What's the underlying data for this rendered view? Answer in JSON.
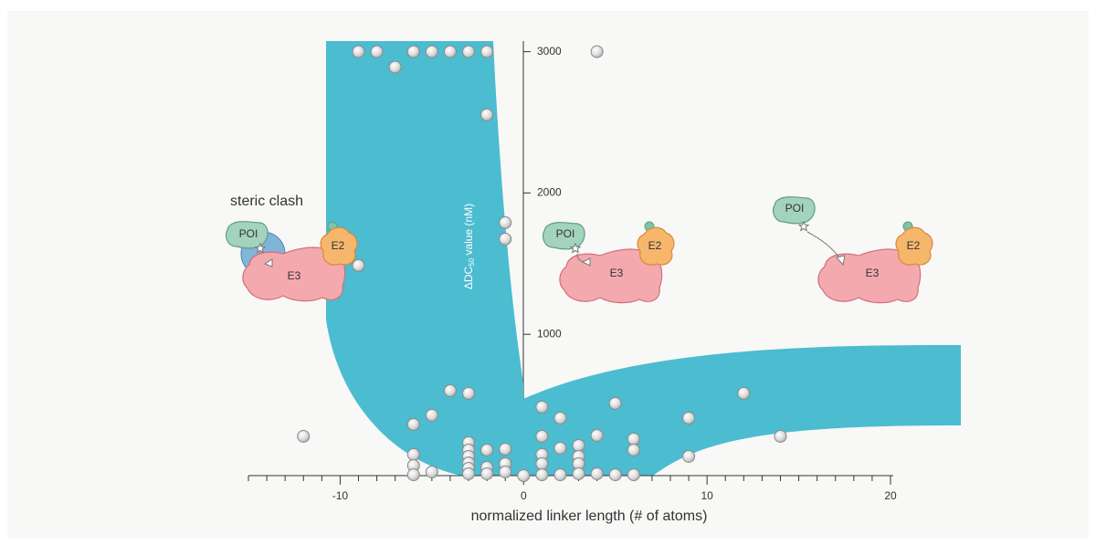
{
  "chart_data": {
    "type": "scatter",
    "x_label": "normalized linker length (# of atoms)",
    "y_label": {
      "main": "ΔDC",
      "sub": "50",
      "rest": " value (nM)"
    },
    "xlim": [
      -15,
      20
    ],
    "ylim": [
      0,
      3075
    ],
    "xticks": [
      -10,
      0,
      10,
      20
    ],
    "x_minor_ticks": [
      -15,
      -14,
      -13,
      -12,
      -11,
      -9,
      -8,
      -7,
      -6,
      -5,
      -4,
      -3,
      -2,
      -1,
      1,
      2,
      3,
      4,
      5,
      6,
      7,
      8,
      9,
      11,
      12,
      13,
      14,
      15,
      16,
      17,
      18,
      19
    ],
    "yticks": [
      1000,
      2000,
      3000
    ],
    "x": [
      -9,
      -8,
      -6,
      -5,
      -4,
      -3,
      -2,
      4,
      -7,
      -2,
      -1,
      -1,
      -9,
      -12,
      -4,
      -3,
      -5,
      -6,
      -6,
      -6,
      -6,
      -5,
      -3,
      -3,
      -3,
      -3,
      -3,
      -3,
      -2,
      -2,
      -2,
      -1,
      -1,
      -1,
      0,
      1,
      1,
      1,
      1,
      1,
      2,
      2,
      2,
      3,
      3,
      3,
      3,
      4,
      4,
      5,
      5,
      6,
      6,
      6,
      9,
      9,
      12,
      14
    ],
    "values": [
      3000,
      3000,
      3000,
      3000,
      3000,
      3000,
      3000,
      3000,
      2890,
      2553,
      1790,
      1674,
      1487,
      278,
      601,
      582,
      427,
      362,
      149,
      71,
      6,
      26,
      233,
      181,
      136,
      90,
      52,
      13,
      181,
      58,
      13,
      187,
      84,
      26,
      0,
      485,
      278,
      149,
      84,
      6,
      407,
      194,
      6,
      213,
      136,
      84,
      13,
      284,
      13,
      511,
      6,
      259,
      181,
      6,
      407,
      136,
      582,
      278
    ],
    "annotation": "steric clash",
    "illustrations": [
      {
        "poi": "POI",
        "e2": "E2",
        "e3": "E3"
      },
      {
        "poi": "POI",
        "e2": "E2",
        "e3": "E3"
      },
      {
        "poi": "POI",
        "e2": "E2",
        "e3": "E3"
      }
    ]
  }
}
